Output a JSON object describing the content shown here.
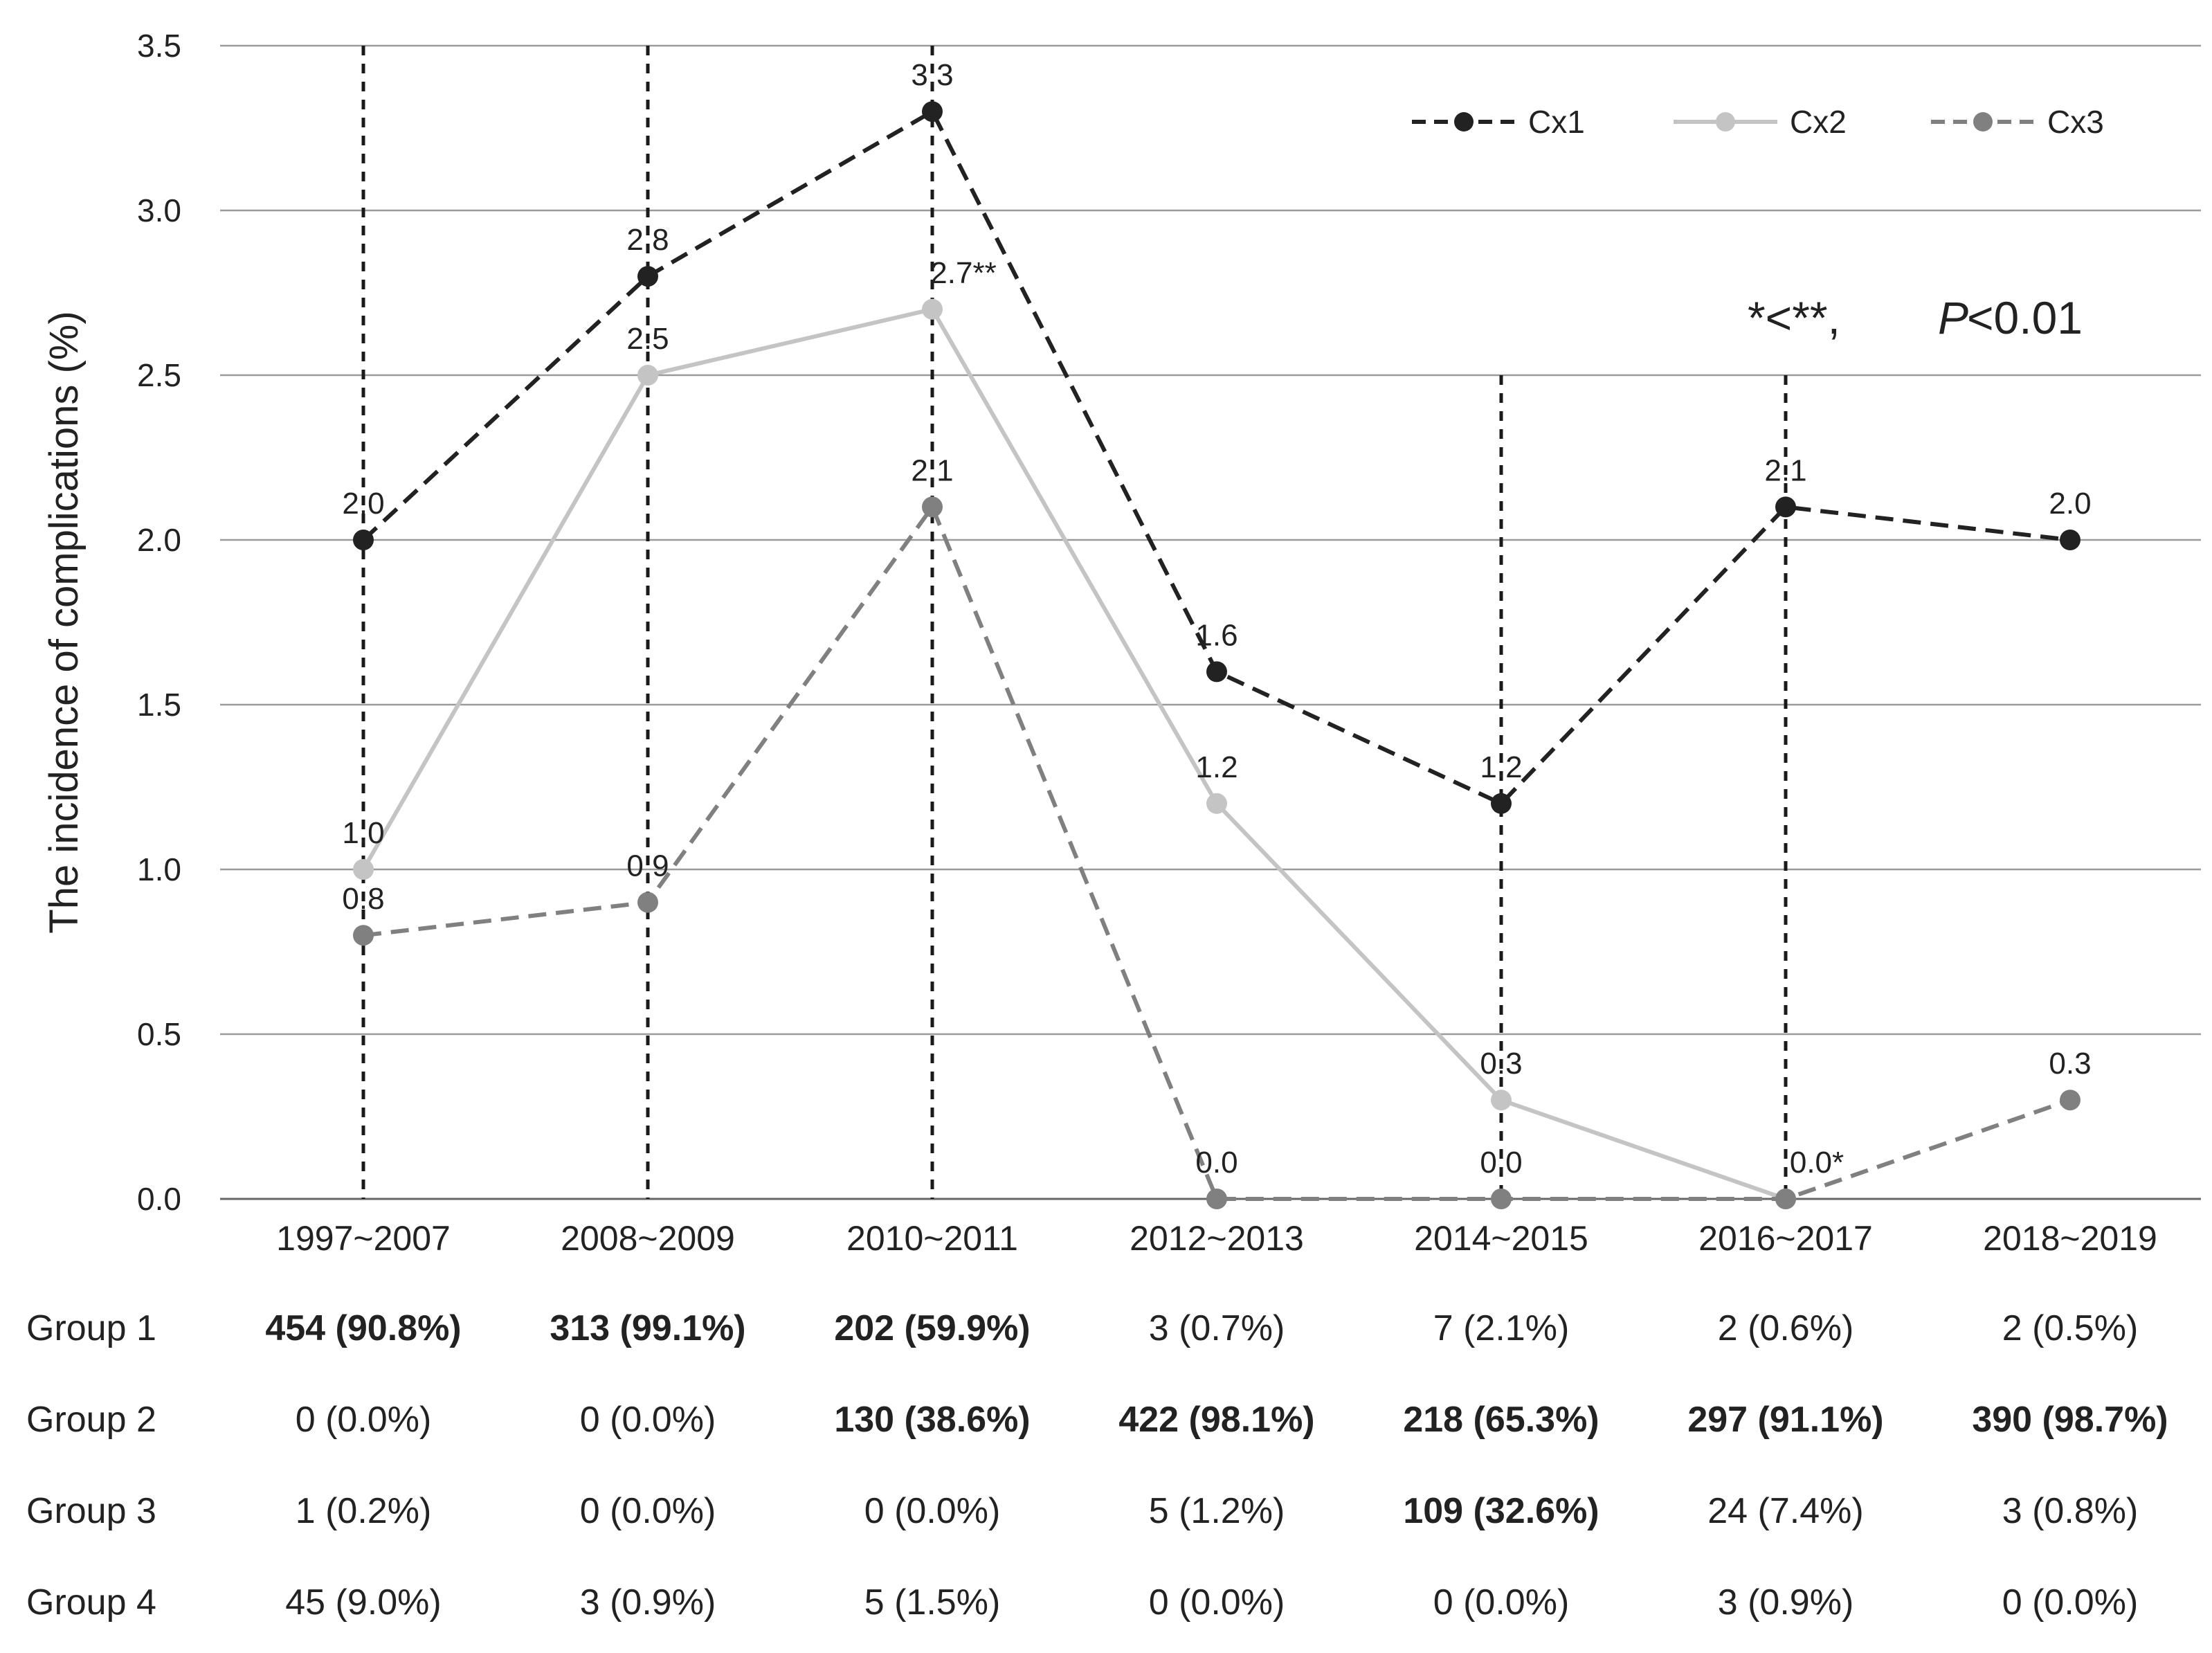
{
  "chart_data": {
    "type": "line",
    "ylabel": "The incidence of complications (%)",
    "ylim": [
      0,
      3.5
    ],
    "yticks": [
      "0.0",
      "0.5",
      "1.0",
      "1.5",
      "2.0",
      "2.5",
      "3.0",
      "3.5"
    ],
    "categories": [
      "1997~2007",
      "2008~2009",
      "2010~2011",
      "2012~2013",
      "2014~2015",
      "2016~2017",
      "2018~2019"
    ],
    "series": [
      {
        "name": "Cx1",
        "color": "#222222",
        "dash": "dashed",
        "values": [
          2.0,
          2.8,
          3.3,
          1.6,
          1.2,
          2.1,
          2.0
        ],
        "labels": [
          "2.0",
          "2.8",
          "3.3",
          "1.6",
          "1.2",
          "2.1",
          "2.0"
        ]
      },
      {
        "name": "Cx2",
        "color": "#c4c4c4",
        "dash": "solid",
        "values": [
          1.0,
          2.5,
          2.7,
          1.2,
          0.3,
          0.0,
          null
        ],
        "labels": [
          "1.0",
          "2.5",
          "2.7**",
          "1.2",
          "0.3",
          "0.0*",
          ""
        ]
      },
      {
        "name": "Cx3",
        "color": "#808080",
        "dash": "dashed",
        "values": [
          0.8,
          0.9,
          2.1,
          0.0,
          0.0,
          0.0,
          0.3
        ],
        "labels": [
          "0.8",
          "0.9",
          "2.1",
          "0.0",
          "0.0",
          "",
          "0.3"
        ]
      }
    ],
    "vertical_markers": [
      "1997~2007",
      "2008~2009",
      "2010~2011",
      "2014~2015",
      "2016~2017"
    ],
    "annotation": {
      "stars": "*<**,",
      "p_label": "P",
      "p_value": "<0.01"
    },
    "legend_position": "top-right",
    "grid": true
  },
  "table": {
    "rows": [
      {
        "label": "Group 1",
        "cells": [
          "454 (90.8%)",
          "313 (99.1%)",
          "202 (59.9%)",
          "3 (0.7%)",
          "7 (2.1%)",
          "2 (0.6%)",
          "2 (0.5%)"
        ],
        "bold": [
          true,
          true,
          true,
          false,
          false,
          false,
          false
        ]
      },
      {
        "label": "Group 2",
        "cells": [
          "0 (0.0%)",
          "0 (0.0%)",
          "130 (38.6%)",
          "422 (98.1%)",
          "218 (65.3%)",
          "297 (91.1%)",
          "390 (98.7%)"
        ],
        "bold": [
          false,
          false,
          true,
          true,
          true,
          true,
          true
        ]
      },
      {
        "label": "Group 3",
        "cells": [
          "1 (0.2%)",
          "0 (0.0%)",
          "0 (0.0%)",
          "5 (1.2%)",
          "109 (32.6%)",
          "24 (7.4%)",
          "3 (0.8%)"
        ],
        "bold": [
          false,
          false,
          false,
          false,
          true,
          false,
          false
        ]
      },
      {
        "label": "Group 4",
        "cells": [
          "45 (9.0%)",
          "3 (0.9%)",
          "5 (1.5%)",
          "0 (0.0%)",
          "0 (0.0%)",
          "3 (0.9%)",
          "0 (0.0%)"
        ],
        "bold": [
          false,
          false,
          false,
          false,
          false,
          false,
          false
        ]
      }
    ]
  }
}
